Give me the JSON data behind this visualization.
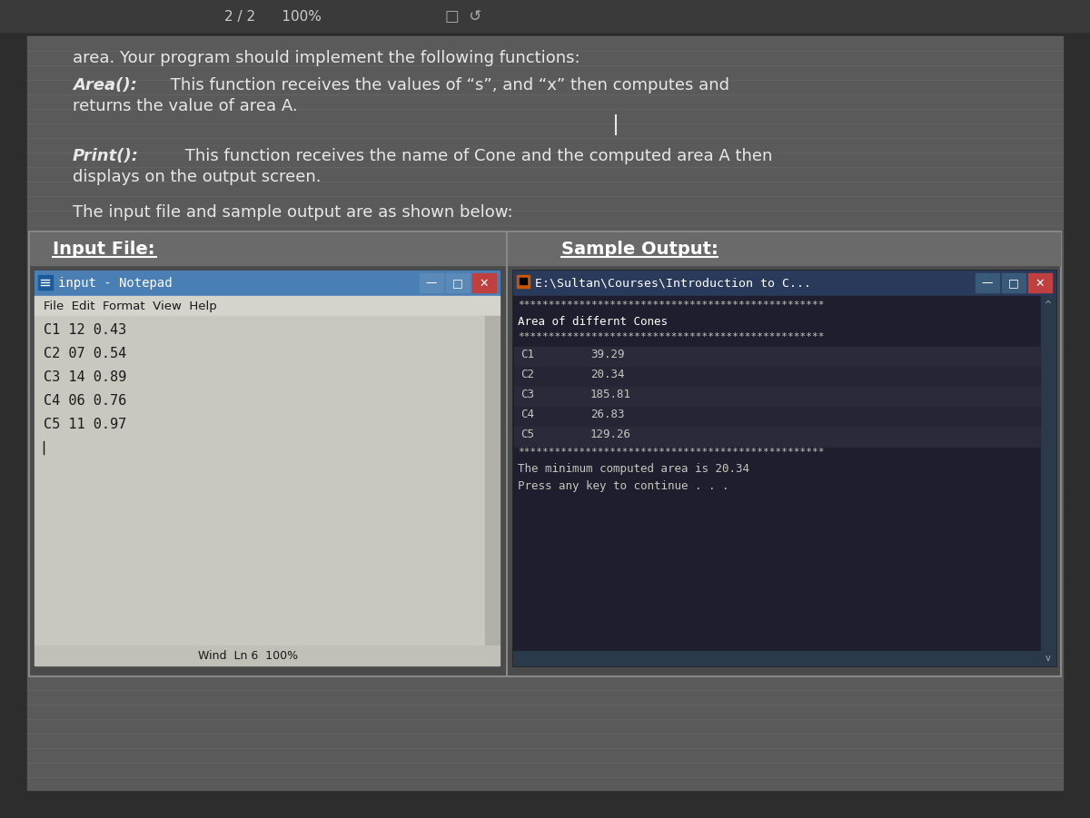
{
  "bg_color": "#2d2d2d",
  "toolbar_text": "2 / 2      100%",
  "line1": "area. Your program should implement the following functions:",
  "area_label": "Area():",
  "area_desc": " This function receives the values of “s”, and “x” then computes and",
  "area_desc2": "returns the value of area A.",
  "print_label": "Print():",
  "print_desc": " This function receives the name of Cone and the computed area A then",
  "print_desc2": "displays on the output screen.",
  "input_note": "The input file and sample output are as shown below:",
  "input_file_label": "Input File:",
  "sample_output_label": "Sample Output:",
  "notepad_title": "input - Notepad",
  "notepad_menu": "File  Edit  Format  View  Help",
  "notepad_lines": [
    "C1 12 0.43",
    "C2 07 0.54",
    "C3 14 0.89",
    "C4 06 0.76",
    "C5 11 0.97"
  ],
  "notepad_status": "Wind  Ln 6  100%",
  "cmd_title": "E:\\Sultan\\Courses\\Introduction to C...",
  "cmd_stars": "**************************************************",
  "cmd_header": "Area of differnt Cones",
  "cmd_data": [
    [
      "C1",
      "39.29"
    ],
    [
      "C2",
      "20.34"
    ],
    [
      "C3",
      "185.81"
    ],
    [
      "C4",
      "26.83"
    ],
    [
      "C5",
      "129.26"
    ]
  ],
  "cmd_min": "The minimum computed area is 20.34",
  "cmd_press": "Press any key to continue . . .",
  "row_colors": [
    "#2a2a3a",
    "#252535",
    "#2a2a3a",
    "#252535",
    "#2a2a3a"
  ]
}
